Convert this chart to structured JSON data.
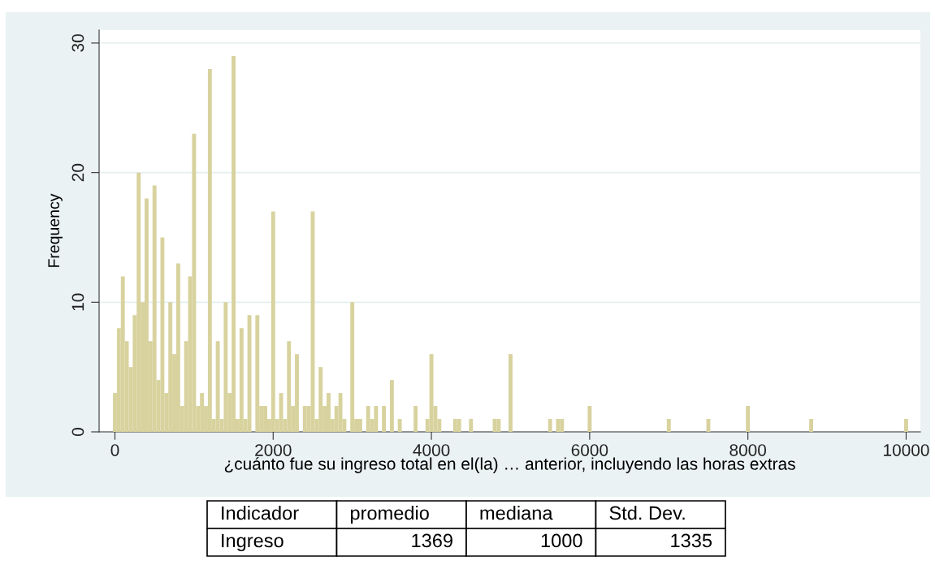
{
  "chart_data": {
    "type": "histogram",
    "xlabel": "¿cuánto fue su ingreso total en el(la) … anterior, incluyendo las horas extras",
    "ylabel": "Frequency",
    "color": "#d8d29e",
    "bins": [
      -25,
      25,
      75,
      125,
      175,
      225,
      275,
      325,
      375,
      425,
      475,
      525,
      575,
      625,
      675,
      725,
      775,
      825,
      875,
      925,
      975,
      1025,
      1075,
      1125,
      1175,
      1225,
      1275,
      1325,
      1375,
      1425,
      1475,
      1525,
      1575,
      1625,
      1675,
      1725,
      1775,
      1825,
      1875,
      1925,
      1975,
      2025,
      2075,
      2125,
      2175,
      2225,
      2275,
      2325,
      2375,
      2425,
      2475,
      2525,
      2575,
      2625,
      2675,
      2725,
      2775,
      2825,
      2875,
      2925,
      2975,
      3025,
      3075,
      3125,
      3175,
      3225,
      3275,
      3325,
      3375,
      3425,
      3475,
      3525,
      3575,
      3625,
      3675,
      3725,
      3775,
      3825,
      3875,
      3925,
      3975,
      4025,
      4075,
      4125,
      4175,
      4225,
      4275,
      4325,
      4375,
      4425,
      4475,
      4525,
      4575,
      4625,
      4675,
      4725,
      4775,
      4825,
      4875,
      4925,
      4975,
      5025,
      5075,
      5125,
      5175,
      5225,
      5275,
      5325,
      5375,
      5425,
      5475,
      5525,
      5575,
      5625,
      5675,
      5725,
      5775,
      5825,
      5875,
      5925,
      5975,
      6025,
      6075,
      6125,
      6175,
      6225,
      6275,
      6325,
      6375,
      6425,
      6475,
      6525,
      6575,
      6625,
      6675,
      6725,
      6775,
      6825,
      6875,
      6925,
      6975,
      7025,
      7075,
      7125,
      7175,
      7225,
      7275,
      7325,
      7375,
      7425,
      7475,
      7525,
      7575,
      7625,
      7675,
      7725,
      7775,
      7825,
      7875,
      7925,
      7975,
      8025,
      8075,
      8125,
      8175,
      8225,
      8275,
      8325,
      8375,
      8425,
      8475,
      8525,
      8575,
      8625,
      8675,
      8725,
      8775,
      8825,
      8875,
      8925,
      8975,
      9025,
      9075,
      9125,
      9175,
      9225,
      9275,
      9325,
      9375,
      9425,
      9475,
      9525,
      9575,
      9625,
      9675,
      9725,
      9775,
      9825,
      9875,
      9925,
      9975,
      10025
    ],
    "values": [
      3,
      8,
      12,
      7,
      5,
      9,
      20,
      10,
      18,
      7,
      19,
      4,
      15,
      3,
      10,
      6,
      13,
      2,
      7,
      12,
      23,
      2,
      3,
      2,
      28,
      1,
      7,
      1,
      10,
      3,
      29,
      1,
      8,
      1,
      9,
      0,
      9,
      2,
      2,
      1,
      17,
      1,
      3,
      1,
      7,
      2,
      6,
      0,
      2,
      2,
      17,
      1,
      5,
      2,
      3,
      1,
      2,
      3,
      1,
      0,
      10,
      1,
      1,
      0,
      2,
      1,
      2,
      0,
      2,
      0,
      4,
      0,
      1,
      0,
      0,
      0,
      2,
      0,
      0,
      1,
      6,
      2,
      1,
      0,
      0,
      0,
      1,
      1,
      0,
      0,
      1,
      0,
      0,
      0,
      0,
      0,
      1,
      1,
      0,
      0,
      6,
      0,
      0,
      0,
      0,
      0,
      0,
      0,
      0,
      0,
      1,
      0,
      1,
      1,
      0,
      0,
      0,
      0,
      0,
      0,
      2,
      0,
      0,
      0,
      0,
      0,
      0,
      0,
      0,
      0,
      0,
      0,
      0,
      0,
      0,
      0,
      0,
      0,
      0,
      0,
      1,
      0,
      0,
      0,
      0,
      0,
      0,
      0,
      0,
      0,
      1,
      0,
      0,
      0,
      0,
      0,
      0,
      0,
      0,
      0,
      2,
      0,
      0,
      0,
      0,
      0,
      0,
      0,
      0,
      0,
      0,
      0,
      0,
      0,
      0,
      0,
      1,
      0,
      0,
      0,
      0,
      0,
      0,
      0,
      0,
      0,
      0,
      0,
      0,
      0,
      0,
      0,
      0,
      0,
      0,
      0,
      0,
      0,
      0,
      0,
      1
    ],
    "xlim": [
      -200,
      10180
    ],
    "ylim": [
      0,
      31
    ],
    "xticks": [
      0,
      2000,
      4000,
      6000,
      8000,
      10000
    ],
    "yticks": [
      0,
      10,
      20,
      30
    ],
    "grid": "y",
    "annotations": [
      "Indicador",
      "promedio",
      "mediana",
      "Std. Dev.",
      "Ingreso",
      "1369",
      "1000",
      "1335"
    ]
  }
}
